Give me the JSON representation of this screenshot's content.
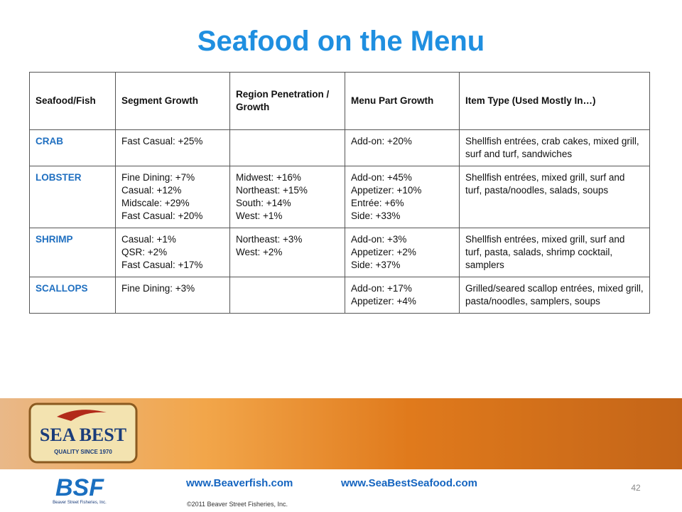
{
  "title": "Seafood on the Menu",
  "table": {
    "headers": [
      "Seafood/Fish",
      "Segment Growth",
      "Region Penetration / Growth",
      "Menu Part Growth",
      "Item Type (Used Mostly In…)"
    ],
    "rows": [
      {
        "fish": "CRAB",
        "segment": [
          "Fast Casual: +25%"
        ],
        "region": [],
        "menu": [
          "Add-on: +20%"
        ],
        "items": "Shellfish entrées, crab cakes, mixed grill, surf and turf, sandwiches"
      },
      {
        "fish": "LOBSTER",
        "segment": [
          "Fine Dining: +7%",
          "Casual: +12%",
          "Midscale: +29%",
          "Fast Casual: +20%"
        ],
        "region": [
          "Midwest: +16%",
          "Northeast: +15%",
          "South: +14%",
          "West: +1%"
        ],
        "menu": [
          "Add-on: +45%",
          "Appetizer: +10%",
          "Entrée: +6%",
          "Side: +33%"
        ],
        "items": "Shellfish entrées, mixed grill, surf and turf, pasta/noodles, salads, soups"
      },
      {
        "fish": "SHRIMP",
        "segment": [
          "Casual: +1%",
          "QSR: +2%",
          "Fast Casual: +17%"
        ],
        "region": [
          "Northeast: +3%",
          "West: +2%"
        ],
        "menu": [
          "Add-on: +3%",
          "Appetizer: +2%",
          "Side: +37%"
        ],
        "items": "Shellfish entrées,  mixed grill, surf and turf, pasta, salads, shrimp cocktail, samplers"
      },
      {
        "fish": "SCALLOPS",
        "segment": [
          "Fine Dining: +3%"
        ],
        "region": [],
        "menu": [
          "Add-on: +17%",
          "Appetizer: +4%"
        ],
        "items": "Grilled/seared scallop entrées, mixed grill, pasta/noodles, samplers, soups"
      }
    ]
  },
  "footer": {
    "logo": "SEA BEST",
    "tagline": "QUALITY SINCE 1970",
    "bsf": "BSF",
    "company": "Beaver Street Fisheries, Inc.",
    "link1": "www.Beaverfish.com",
    "link2": "www.SeaBestSeafood.com",
    "copyright": "©2011 Beaver Street Fisheries, Inc.",
    "page": "42"
  }
}
